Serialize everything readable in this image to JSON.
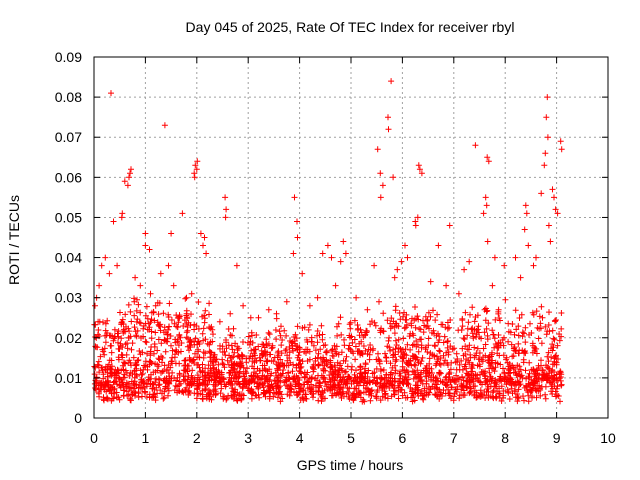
{
  "chart_data": {
    "type": "scatter",
    "title": "Day 045 of 2025, Rate Of TEC Index for receiver rbyl",
    "xlabel": "GPS time / hours",
    "ylabel": "ROTI / TECUs",
    "xlim": [
      0,
      10
    ],
    "ylim": [
      0,
      0.09
    ],
    "xticks": [
      0,
      1,
      2,
      3,
      4,
      5,
      6,
      7,
      8,
      9,
      10
    ],
    "xtick_labels": [
      "0",
      "1",
      "2",
      "3",
      "4",
      "5",
      "6",
      "7",
      "8",
      "9",
      "10"
    ],
    "yticks": [
      0,
      0.01,
      0.02,
      0.03,
      0.04,
      0.05,
      0.06,
      0.07,
      0.08,
      0.09
    ],
    "ytick_labels": [
      "0",
      "0.01",
      "0.02",
      "0.03",
      "0.04",
      "0.05",
      "0.06",
      "0.07",
      "0.08",
      "0.09"
    ],
    "grid": true,
    "marker": "+",
    "color": "#ff0000",
    "series": [
      {
        "name": "ROTI",
        "note": "dense cloud of points from ~0 to 9.1 h, mostly 0.005-0.02 TECU/s; representative outliers listed",
        "points": [
          [
            0.33,
            0.081
          ],
          [
            1.38,
            0.073
          ],
          [
            5.78,
            0.084
          ],
          [
            5.72,
            0.075
          ],
          [
            5.73,
            0.072
          ],
          [
            8.82,
            0.08
          ],
          [
            8.8,
            0.075
          ],
          [
            8.83,
            0.07
          ],
          [
            8.78,
            0.066
          ],
          [
            8.76,
            0.063
          ],
          [
            5.52,
            0.067
          ],
          [
            5.57,
            0.061
          ],
          [
            5.62,
            0.058
          ],
          [
            5.82,
            0.06
          ],
          [
            5.58,
            0.055
          ],
          [
            0.72,
            0.062
          ],
          [
            0.7,
            0.061
          ],
          [
            0.68,
            0.06
          ],
          [
            0.66,
            0.058
          ],
          [
            0.6,
            0.059
          ],
          [
            0.55,
            0.051
          ],
          [
            0.54,
            0.05
          ],
          [
            0.38,
            0.049
          ],
          [
            0.22,
            0.04
          ],
          [
            0.15,
            0.038
          ],
          [
            1.97,
            0.063
          ],
          [
            2.0,
            0.062
          ],
          [
            1.95,
            0.061
          ],
          [
            1.96,
            0.06
          ],
          [
            2.01,
            0.064
          ],
          [
            1.72,
            0.051
          ],
          [
            2.55,
            0.055
          ],
          [
            2.57,
            0.052
          ],
          [
            2.56,
            0.05
          ],
          [
            2.78,
            0.038
          ],
          [
            1.0,
            0.046
          ],
          [
            1.0,
            0.043
          ],
          [
            1.08,
            0.042
          ],
          [
            1.5,
            0.046
          ],
          [
            2.08,
            0.046
          ],
          [
            3.9,
            0.055
          ],
          [
            3.95,
            0.049
          ],
          [
            3.96,
            0.045
          ],
          [
            3.88,
            0.041
          ],
          [
            4.45,
            0.041
          ],
          [
            4.55,
            0.043
          ],
          [
            4.62,
            0.04
          ],
          [
            4.8,
            0.039
          ],
          [
            4.85,
            0.044
          ],
          [
            4.9,
            0.041
          ],
          [
            6.32,
            0.063
          ],
          [
            6.34,
            0.062
          ],
          [
            6.38,
            0.061
          ],
          [
            6.25,
            0.049
          ],
          [
            6.3,
            0.05
          ],
          [
            6.26,
            0.048
          ],
          [
            6.7,
            0.043
          ],
          [
            6.92,
            0.048
          ],
          [
            7.42,
            0.068
          ],
          [
            7.65,
            0.065
          ],
          [
            7.68,
            0.064
          ],
          [
            7.62,
            0.055
          ],
          [
            7.64,
            0.053
          ],
          [
            7.58,
            0.051
          ],
          [
            7.66,
            0.044
          ],
          [
            8.4,
            0.053
          ],
          [
            8.42,
            0.051
          ],
          [
            8.38,
            0.047
          ],
          [
            8.7,
            0.056
          ],
          [
            8.92,
            0.057
          ],
          [
            8.95,
            0.055
          ],
          [
            8.98,
            0.052
          ],
          [
            9.02,
            0.051
          ],
          [
            9.08,
            0.069
          ],
          [
            9.1,
            0.067
          ],
          [
            8.85,
            0.048
          ],
          [
            8.88,
            0.044
          ],
          [
            8.6,
            0.04
          ],
          [
            8.55,
            0.038
          ],
          [
            8.45,
            0.043
          ],
          [
            8.2,
            0.04
          ],
          [
            8.3,
            0.035
          ],
          [
            7.98,
            0.038
          ],
          [
            7.8,
            0.04
          ],
          [
            7.75,
            0.033
          ],
          [
            7.3,
            0.039
          ],
          [
            7.2,
            0.037
          ],
          [
            7.1,
            0.031
          ],
          [
            6.85,
            0.033
          ],
          [
            6.55,
            0.034
          ],
          [
            6.05,
            0.043
          ],
          [
            6.1,
            0.04
          ],
          [
            5.98,
            0.039
          ],
          [
            5.9,
            0.037
          ],
          [
            5.85,
            0.035
          ],
          [
            5.45,
            0.038
          ],
          [
            5.32,
            0.027
          ],
          [
            5.1,
            0.03
          ],
          [
            4.7,
            0.033
          ],
          [
            4.35,
            0.03
          ],
          [
            4.2,
            0.028
          ],
          [
            4.05,
            0.036
          ],
          [
            3.75,
            0.029
          ],
          [
            3.55,
            0.026
          ],
          [
            3.4,
            0.027
          ],
          [
            3.2,
            0.025
          ],
          [
            3.05,
            0.025
          ],
          [
            2.9,
            0.028
          ],
          [
            2.65,
            0.026
          ],
          [
            2.45,
            0.024
          ],
          [
            2.3,
            0.022
          ],
          [
            2.15,
            0.045
          ],
          [
            2.12,
            0.043
          ],
          [
            2.18,
            0.041
          ],
          [
            1.9,
            0.031
          ],
          [
            1.8,
            0.03
          ],
          [
            1.65,
            0.025
          ],
          [
            1.55,
            0.033
          ],
          [
            1.45,
            0.038
          ],
          [
            1.3,
            0.036
          ],
          [
            1.2,
            0.028
          ],
          [
            1.1,
            0.031
          ],
          [
            0.9,
            0.033
          ],
          [
            0.8,
            0.035
          ],
          [
            0.45,
            0.038
          ],
          [
            0.3,
            0.036
          ],
          [
            0.1,
            0.033
          ],
          [
            0.05,
            0.03
          ],
          [
            0.02,
            0.028
          ],
          [
            0.08,
            0.024
          ]
        ]
      }
    ]
  }
}
